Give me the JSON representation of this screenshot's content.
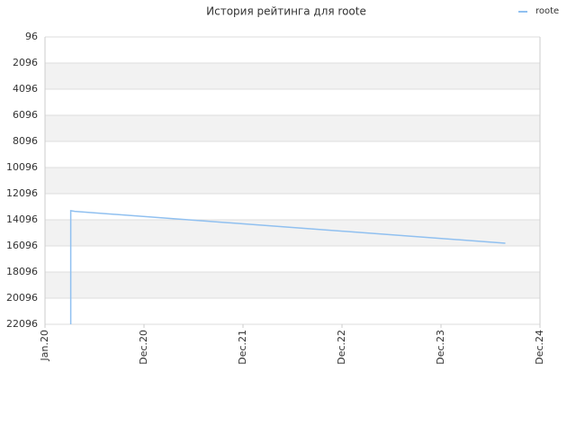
{
  "chart_data": {
    "type": "line",
    "title": "История рейтинга для roote",
    "x": [
      0.26,
      0.26,
      0.3,
      4.65
    ],
    "series": [
      {
        "name": "roote",
        "color": "#90c0f0",
        "values": [
          22096,
          13400,
          13450,
          15890
        ]
      }
    ],
    "xlim": [
      0,
      5
    ],
    "xticks": [
      {
        "value": 0,
        "label": "Jan.20"
      },
      {
        "value": 1,
        "label": "Dec.20"
      },
      {
        "value": 2,
        "label": "Dec.21"
      },
      {
        "value": 3,
        "label": "Dec.22"
      },
      {
        "value": 4,
        "label": "Dec.23"
      },
      {
        "value": 5,
        "label": "Dec.24"
      }
    ],
    "ylim": [
      96,
      22096
    ],
    "y_inverted": true,
    "yticks": [
      96,
      2096,
      4096,
      6096,
      8096,
      10096,
      12096,
      14096,
      16096,
      18096,
      20096,
      22096
    ],
    "grid": true,
    "legend": "top-right"
  }
}
